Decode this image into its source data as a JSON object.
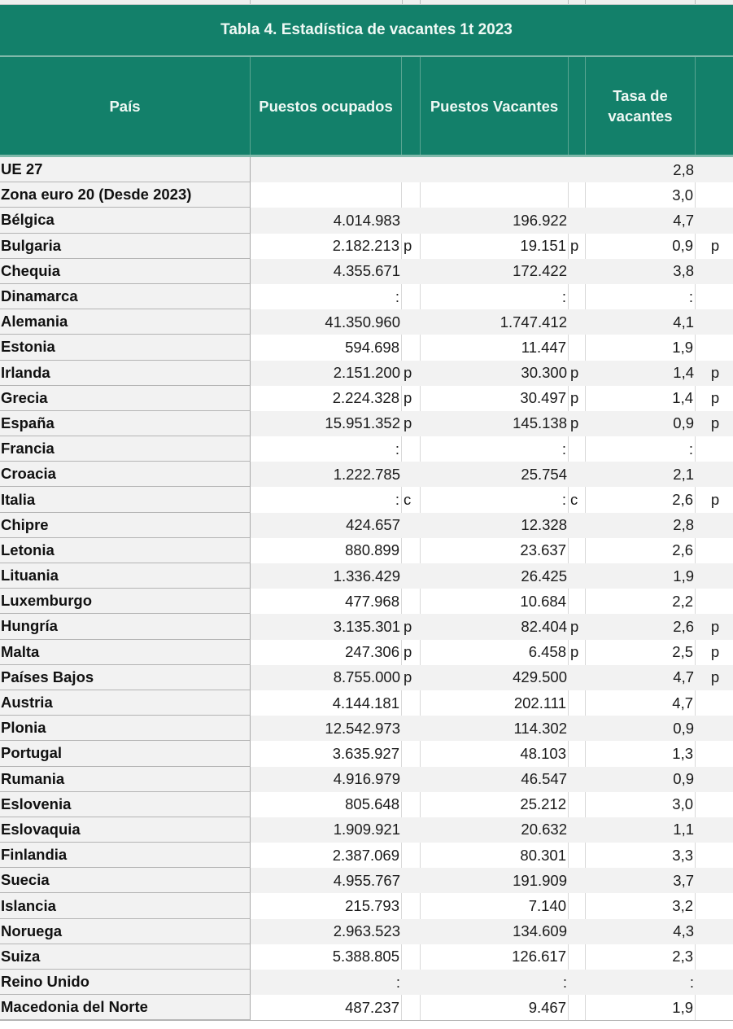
{
  "title": "Tabla 4. Estadística de vacantes 1t 2023",
  "header": {
    "country": "País",
    "occupied": "Puestos ocupados",
    "vacancies": "Puestos Vacantes",
    "rate": "Tasa de vacantes"
  },
  "colors": {
    "header_green": "#13806a",
    "header_text": "#eef8f4",
    "row_gray": "#f2f2f2"
  },
  "rows": [
    {
      "country": "UE 27",
      "occupied": "",
      "occ_flag": "",
      "vacancies": "",
      "vac_flag": "",
      "rate": "2,8",
      "rate_flag": ""
    },
    {
      "country": "Zona euro 20 (Desde 2023)",
      "occupied": "",
      "occ_flag": "",
      "vacancies": "",
      "vac_flag": "",
      "rate": "3,0",
      "rate_flag": ""
    },
    {
      "country": "Bélgica",
      "occupied": "4.014.983",
      "occ_flag": "",
      "vacancies": "196.922",
      "vac_flag": "",
      "rate": "4,7",
      "rate_flag": ""
    },
    {
      "country": "Bulgaria",
      "occupied": "2.182.213",
      "occ_flag": "p",
      "vacancies": "19.151",
      "vac_flag": "p",
      "rate": "0,9",
      "rate_flag": "p"
    },
    {
      "country": "Chequia",
      "occupied": "4.355.671",
      "occ_flag": "",
      "vacancies": "172.422",
      "vac_flag": "",
      "rate": "3,8",
      "rate_flag": ""
    },
    {
      "country": "Dinamarca",
      "occupied": ":",
      "occ_flag": "",
      "vacancies": ":",
      "vac_flag": "",
      "rate": ":",
      "rate_flag": ""
    },
    {
      "country": "Alemania",
      "occupied": "41.350.960",
      "occ_flag": "",
      "vacancies": "1.747.412",
      "vac_flag": "",
      "rate": "4,1",
      "rate_flag": ""
    },
    {
      "country": "Estonia",
      "occupied": "594.698",
      "occ_flag": "",
      "vacancies": "11.447",
      "vac_flag": "",
      "rate": "1,9",
      "rate_flag": ""
    },
    {
      "country": "Irlanda",
      "occupied": "2.151.200",
      "occ_flag": "p",
      "vacancies": "30.300",
      "vac_flag": "p",
      "rate": "1,4",
      "rate_flag": "p"
    },
    {
      "country": "Grecia",
      "occupied": "2.224.328",
      "occ_flag": "p",
      "vacancies": "30.497",
      "vac_flag": "p",
      "rate": "1,4",
      "rate_flag": "p"
    },
    {
      "country": "España",
      "occupied": "15.951.352",
      "occ_flag": "p",
      "vacancies": "145.138",
      "vac_flag": "p",
      "rate": "0,9",
      "rate_flag": "p"
    },
    {
      "country": "Francia",
      "occupied": ":",
      "occ_flag": "",
      "vacancies": ":",
      "vac_flag": "",
      "rate": ":",
      "rate_flag": ""
    },
    {
      "country": "Croacia",
      "occupied": "1.222.785",
      "occ_flag": "",
      "vacancies": "25.754",
      "vac_flag": "",
      "rate": "2,1",
      "rate_flag": ""
    },
    {
      "country": "Italia",
      "occupied": ":",
      "occ_flag": "c",
      "vacancies": ":",
      "vac_flag": "c",
      "rate": "2,6",
      "rate_flag": "p"
    },
    {
      "country": "Chipre",
      "occupied": "424.657",
      "occ_flag": "",
      "vacancies": "12.328",
      "vac_flag": "",
      "rate": "2,8",
      "rate_flag": ""
    },
    {
      "country": "Letonia",
      "occupied": "880.899",
      "occ_flag": "",
      "vacancies": "23.637",
      "vac_flag": "",
      "rate": "2,6",
      "rate_flag": ""
    },
    {
      "country": "Lituania",
      "occupied": "1.336.429",
      "occ_flag": "",
      "vacancies": "26.425",
      "vac_flag": "",
      "rate": "1,9",
      "rate_flag": ""
    },
    {
      "country": "Luxemburgo",
      "occupied": "477.968",
      "occ_flag": "",
      "vacancies": "10.684",
      "vac_flag": "",
      "rate": "2,2",
      "rate_flag": ""
    },
    {
      "country": "Hungría",
      "occupied": "3.135.301",
      "occ_flag": "p",
      "vacancies": "82.404",
      "vac_flag": "p",
      "rate": "2,6",
      "rate_flag": "p"
    },
    {
      "country": "Malta",
      "occupied": "247.306",
      "occ_flag": "p",
      "vacancies": "6.458",
      "vac_flag": "p",
      "rate": "2,5",
      "rate_flag": "p"
    },
    {
      "country": "Países Bajos",
      "occupied": "8.755.000",
      "occ_flag": "p",
      "vacancies": "429.500",
      "vac_flag": "",
      "rate": "4,7",
      "rate_flag": "p"
    },
    {
      "country": "Austria",
      "occupied": "4.144.181",
      "occ_flag": "",
      "vacancies": "202.111",
      "vac_flag": "",
      "rate": "4,7",
      "rate_flag": ""
    },
    {
      "country": "Plonia",
      "occupied": "12.542.973",
      "occ_flag": "",
      "vacancies": "114.302",
      "vac_flag": "",
      "rate": "0,9",
      "rate_flag": ""
    },
    {
      "country": "Portugal",
      "occupied": "3.635.927",
      "occ_flag": "",
      "vacancies": "48.103",
      "vac_flag": "",
      "rate": "1,3",
      "rate_flag": ""
    },
    {
      "country": "Rumania",
      "occupied": "4.916.979",
      "occ_flag": "",
      "vacancies": "46.547",
      "vac_flag": "",
      "rate": "0,9",
      "rate_flag": ""
    },
    {
      "country": "Eslovenia",
      "occupied": "805.648",
      "occ_flag": "",
      "vacancies": "25.212",
      "vac_flag": "",
      "rate": "3,0",
      "rate_flag": ""
    },
    {
      "country": "Eslovaquia",
      "occupied": "1.909.921",
      "occ_flag": "",
      "vacancies": "20.632",
      "vac_flag": "",
      "rate": "1,1",
      "rate_flag": ""
    },
    {
      "country": "Finlandia",
      "occupied": "2.387.069",
      "occ_flag": "",
      "vacancies": "80.301",
      "vac_flag": "",
      "rate": "3,3",
      "rate_flag": ""
    },
    {
      "country": "Suecia",
      "occupied": "4.955.767",
      "occ_flag": "",
      "vacancies": "191.909",
      "vac_flag": "",
      "rate": "3,7",
      "rate_flag": ""
    },
    {
      "country": "Islancia",
      "occupied": "215.793",
      "occ_flag": "",
      "vacancies": "7.140",
      "vac_flag": "",
      "rate": "3,2",
      "rate_flag": ""
    },
    {
      "country": "Noruega",
      "occupied": "2.963.523",
      "occ_flag": "",
      "vacancies": "134.609",
      "vac_flag": "",
      "rate": "4,3",
      "rate_flag": ""
    },
    {
      "country": "Suiza",
      "occupied": "5.388.805",
      "occ_flag": "",
      "vacancies": "126.617",
      "vac_flag": "",
      "rate": "2,3",
      "rate_flag": ""
    },
    {
      "country": "Reino Unido",
      "occupied": ":",
      "occ_flag": "",
      "vacancies": ":",
      "vac_flag": "",
      "rate": ":",
      "rate_flag": ""
    },
    {
      "country": "Macedonia del Norte",
      "occupied": "487.237",
      "occ_flag": "",
      "vacancies": "9.467",
      "vac_flag": "",
      "rate": "1,9",
      "rate_flag": ""
    }
  ]
}
